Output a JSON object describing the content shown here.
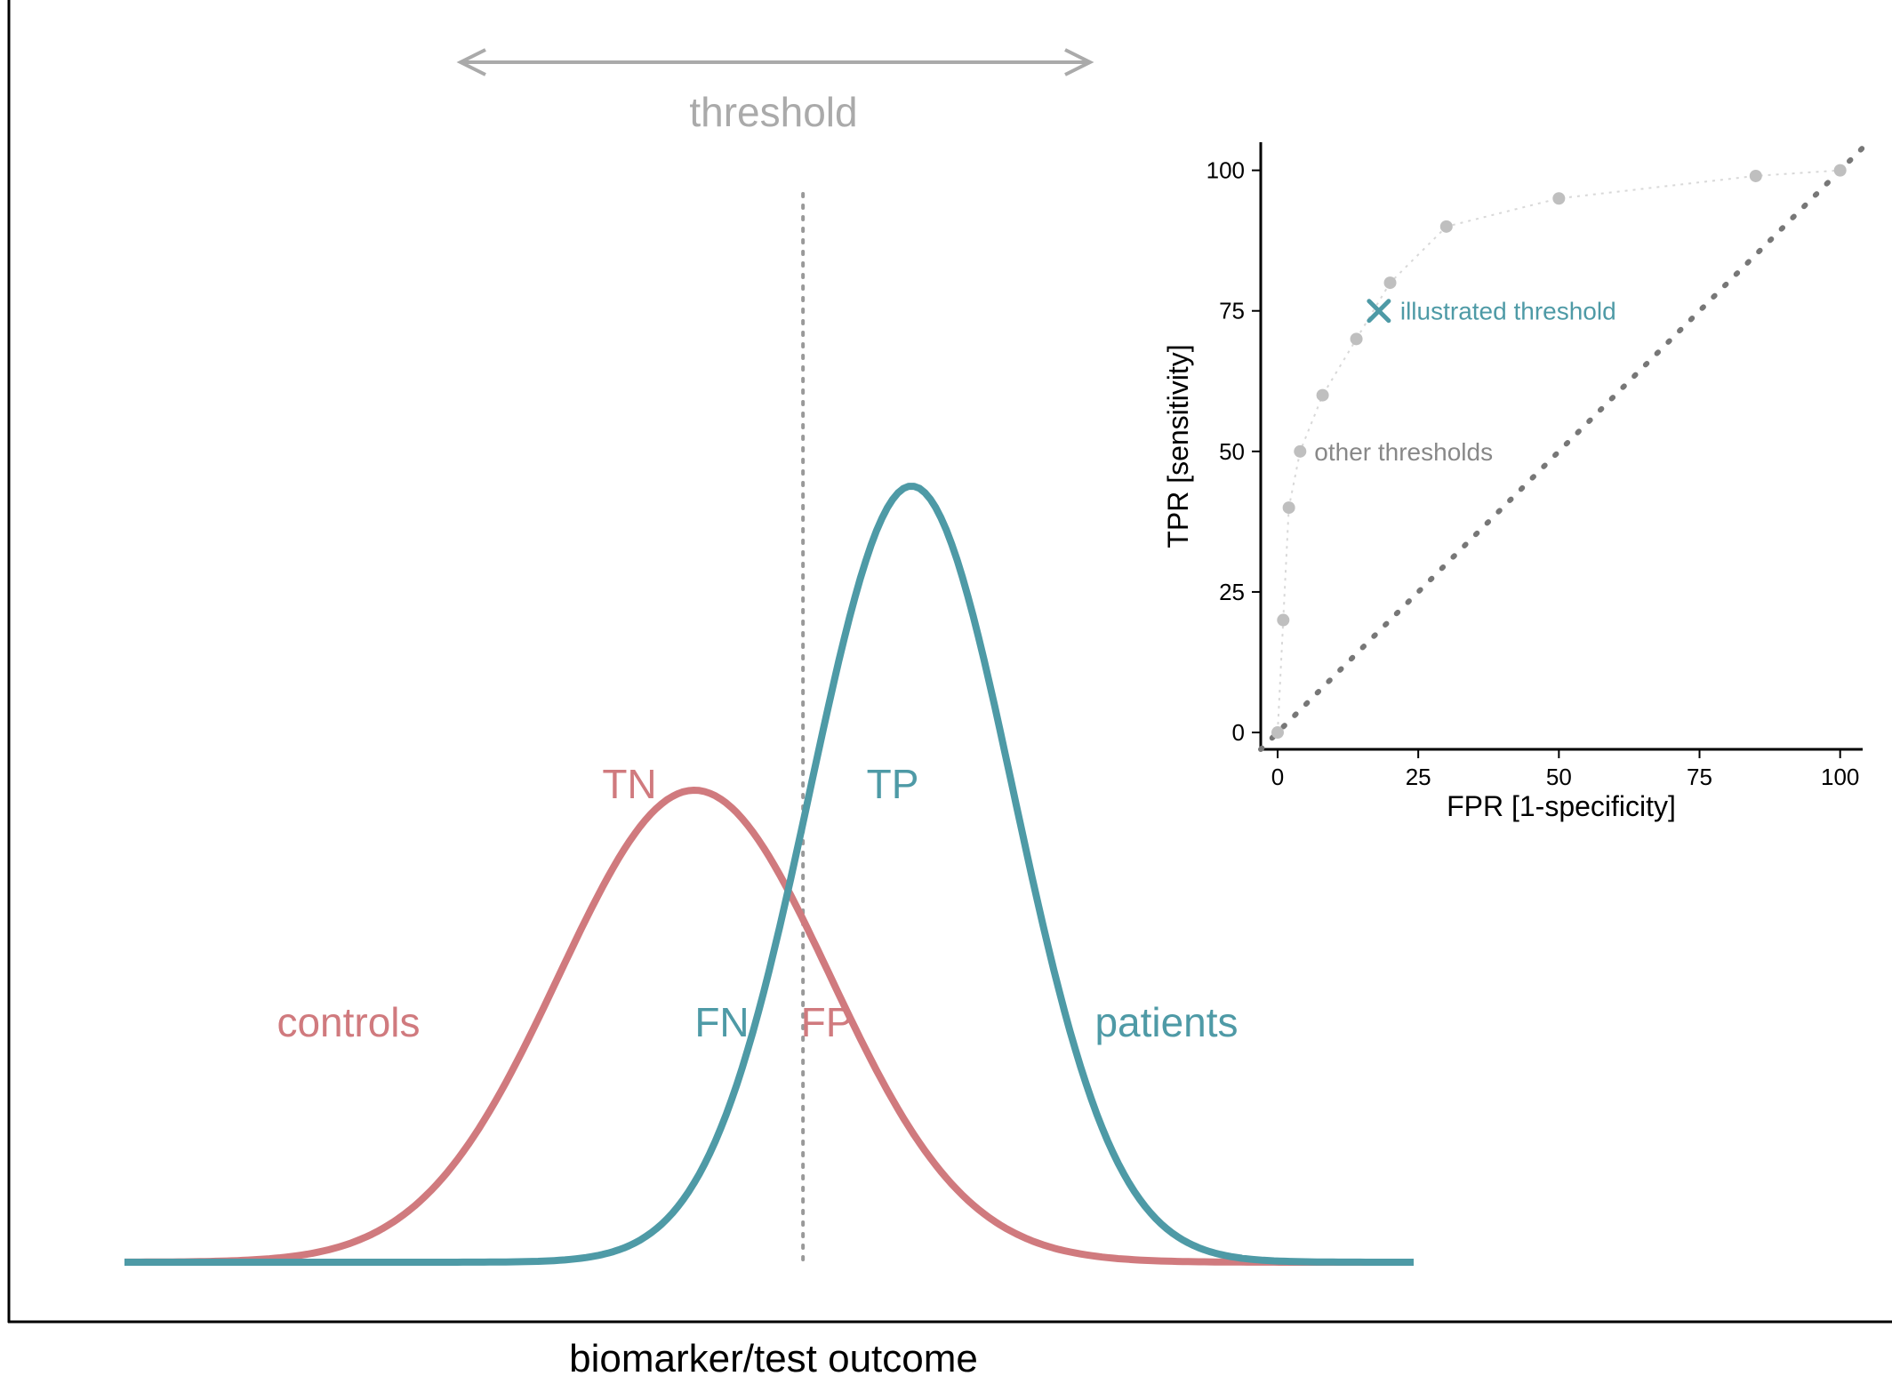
{
  "colors": {
    "controls": "#D07A7E",
    "patients": "#4E9AA6",
    "threshold": "#AAAAAA",
    "axis": "#000000",
    "roc_points": "#BFBFBF",
    "diagonal": "#777777",
    "other_label": "#888888"
  },
  "main": {
    "xlabel": "biomarker/test outcome",
    "threshold_label": "threshold",
    "region_labels": {
      "tn": "TN",
      "tp": "TP",
      "fn": "FN",
      "fp": "FP"
    },
    "group_labels": {
      "controls": "controls",
      "patients": "patients"
    },
    "curves": {
      "controls": {
        "mean": -0.8,
        "sd": 1.0,
        "peak": 0.45
      },
      "patients": {
        "mean": 0.8,
        "sd": 0.75,
        "peak": 0.74
      },
      "x_range": [
        -5,
        4.5
      ],
      "threshold_x": 0.0
    }
  },
  "chart_data": {
    "type": "scatter",
    "xlabel": "FPR [1-specificity]",
    "ylabel": "TPR [sensitivity]",
    "xlim": [
      -3,
      104
    ],
    "ylim": [
      -3,
      105
    ],
    "xticks": [
      0,
      25,
      50,
      75,
      100
    ],
    "yticks": [
      0,
      25,
      50,
      75,
      100
    ],
    "series": [
      {
        "name": "other thresholds",
        "x": [
          0,
          1,
          2,
          4,
          8,
          14,
          20,
          30,
          50,
          85,
          100
        ],
        "y": [
          0,
          20,
          40,
          50,
          60,
          70,
          80,
          90,
          95,
          99,
          100
        ]
      },
      {
        "name": "illustrated threshold",
        "x": [
          18
        ],
        "y": [
          75
        ]
      }
    ],
    "diagonal": {
      "from": [
        -3,
        -3
      ],
      "to": [
        104,
        104
      ]
    },
    "annotations": {
      "illustrated": "illustrated threshold",
      "other": "other thresholds"
    }
  }
}
